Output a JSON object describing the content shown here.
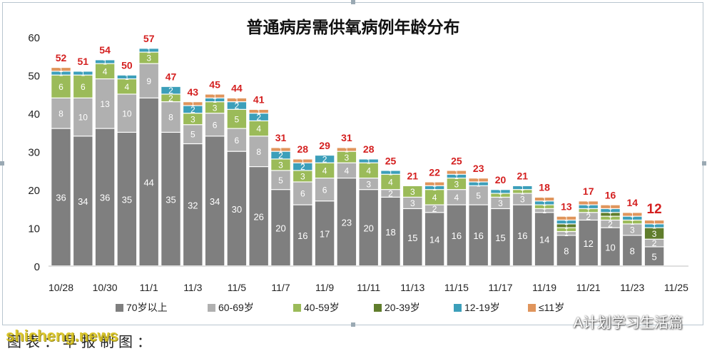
{
  "chart_data": {
    "type": "bar",
    "stacked": true,
    "title": "普通病房需供氧病例年龄分布",
    "categories": [
      "10/28",
      "10/29",
      "10/30",
      "10/31",
      "11/1",
      "11/2",
      "11/3",
      "11/4",
      "11/5",
      "11/6",
      "11/7",
      "11/8",
      "11/9",
      "11/10",
      "11/11",
      "11/12",
      "11/13",
      "11/14",
      "11/15",
      "11/16",
      "11/17",
      "11/18",
      "11/19",
      "11/20",
      "11/21",
      "11/22",
      "11/23",
      "11/24"
    ],
    "x_tick_labels": [
      "10/28",
      "10/30",
      "11/1",
      "11/3",
      "11/5",
      "11/7",
      "11/9",
      "11/11",
      "11/13",
      "11/15",
      "11/17",
      "11/19",
      "11/21",
      "11/23",
      "11/25"
    ],
    "ylim": [
      0,
      60
    ],
    "y_ticks": [
      0,
      10,
      20,
      30,
      40,
      50,
      60
    ],
    "totals": [
      52,
      51,
      54,
      50,
      57,
      47,
      43,
      45,
      44,
      41,
      31,
      28,
      29,
      31,
      28,
      25,
      21,
      22,
      25,
      23,
      20,
      21,
      18,
      13,
      17,
      16,
      14,
      12
    ],
    "highlight_last_total": true,
    "series": [
      {
        "name": "70岁以上",
        "color": "#7f7f7f",
        "values": [
          36,
          34,
          36,
          35,
          44,
          35,
          32,
          34,
          30,
          26,
          20,
          16,
          17,
          23,
          20,
          18,
          15,
          14,
          16,
          16,
          15,
          16,
          14,
          8,
          12,
          10,
          8,
          5
        ]
      },
      {
        "name": "60-69岁",
        "color": "#b0b0b0",
        "values": [
          8,
          10,
          13,
          10,
          9,
          8,
          5,
          6,
          6,
          8,
          5,
          6,
          6,
          4,
          3,
          2,
          3,
          2,
          4,
          5,
          3,
          3,
          1,
          1,
          2,
          2,
          3,
          2
        ]
      },
      {
        "name": "40-59岁",
        "color": "#9bbb59",
        "values": [
          6,
          6,
          4,
          4,
          3,
          2,
          3,
          3,
          5,
          4,
          3,
          3,
          4,
          3,
          4,
          4,
          3,
          4,
          3,
          0,
          1,
          1,
          1,
          1,
          1,
          1,
          1,
          0
        ]
      },
      {
        "name": "20-39岁",
        "color": "#607d2c",
        "values": [
          0,
          0,
          0,
          0,
          0,
          0,
          0,
          0,
          0,
          0,
          0,
          0,
          0,
          0,
          0,
          0,
          0,
          0,
          0,
          0,
          0,
          0,
          0,
          1,
          0,
          1,
          0,
          3
        ]
      },
      {
        "name": "12-19岁",
        "color": "#3c9fba",
        "values": [
          1,
          1,
          1,
          1,
          1,
          2,
          2,
          1,
          2,
          2,
          2,
          2,
          2,
          0,
          1,
          1,
          0,
          1,
          1,
          1,
          1,
          1,
          1,
          1,
          1,
          1,
          1,
          1
        ]
      },
      {
        "name": "≤11岁",
        "color": "#e0955c",
        "values": [
          1,
          0,
          0,
          0,
          0,
          0,
          1,
          1,
          1,
          1,
          1,
          1,
          0,
          1,
          0,
          0,
          0,
          1,
          1,
          1,
          0,
          0,
          1,
          1,
          1,
          1,
          1,
          1
        ]
      }
    ],
    "show_segment_label_min": 1,
    "grid": false,
    "legend_position": "bottom"
  },
  "credit": "图表：早报制图：",
  "watermarks": {
    "left": "shicheng.news",
    "right": "A计划学习生活篇"
  }
}
